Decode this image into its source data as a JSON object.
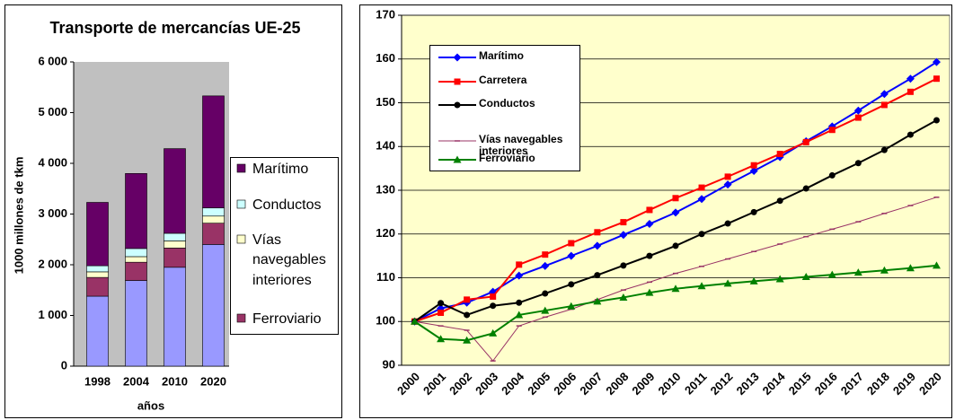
{
  "chart_data": [
    {
      "type": "bar",
      "stacked": true,
      "title": "Transporte de mercancías UE-25",
      "x_label": "años",
      "y_label": "1000 millones de tkm",
      "categories": [
        "1998",
        "2004",
        "2010",
        "2020"
      ],
      "ylim": [
        0,
        6000
      ],
      "yticks": [
        0,
        {
          "value": 1000,
          "label": "1 000"
        },
        {
          "value": 2000,
          "label": "2 000"
        },
        {
          "value": 3000,
          "label": "3 000"
        },
        {
          "value": 4000,
          "label": "4 000"
        },
        {
          "value": 5000,
          "label": "5 000"
        },
        {
          "value": 6000,
          "label": "6 000"
        }
      ],
      "grid": false,
      "legend": "right",
      "plot_background": "#c0c0c0",
      "series": [
        {
          "color": "#9999ff",
          "values": [
            1380,
            1690,
            1950,
            2400
          ]
        },
        {
          "name": "Ferroviario",
          "color": "#993366",
          "values": [
            370,
            360,
            380,
            420
          ]
        },
        {
          "name": "Vías navegables interiores",
          "color": "#ffffcc",
          "values": [
            110,
            110,
            140,
            140
          ]
        },
        {
          "name": "Conductos",
          "color": "#ccffff",
          "values": [
            120,
            160,
            150,
            160
          ]
        },
        {
          "name": "Marítimo",
          "color": "#660066",
          "values": [
            1250,
            1480,
            1670,
            2210
          ]
        }
      ]
    },
    {
      "type": "line",
      "categories": [
        "2000",
        "2001",
        "2002",
        "2003",
        "2004",
        "2005",
        "2006",
        "2007",
        "2008",
        "2009",
        "2010",
        "2011",
        "2012",
        "2013",
        "2014",
        "2015",
        "2016",
        "2017",
        "2018",
        "2019",
        "2020"
      ],
      "ylim": [
        90,
        170
      ],
      "yticks": [
        90,
        100,
        110,
        120,
        130,
        140,
        150,
        160,
        170
      ],
      "grid": true,
      "legend": "upper left",
      "plot_background": "#ffffcc",
      "series": [
        {
          "name": "Marítimo",
          "color": "#0000ff",
          "marker": "diamond",
          "values": [
            100,
            103,
            104.3,
            106.8,
            110.5,
            112.7,
            115,
            117.3,
            119.8,
            122.3,
            124.9,
            128,
            131.3,
            134.4,
            137.6,
            141.2,
            144.6,
            148.2,
            152,
            155.5,
            159.3
          ]
        },
        {
          "name": "Carretera",
          "color": "#ff0000",
          "marker": "square",
          "values": [
            100,
            102,
            105,
            105.7,
            113,
            115.3,
            117.9,
            120.4,
            122.7,
            125.5,
            128.2,
            130.6,
            133.1,
            135.7,
            138.3,
            141,
            143.8,
            146.6,
            149.5,
            152.5,
            155.5
          ]
        },
        {
          "name": "Conductos",
          "color": "#000000",
          "marker": "circle",
          "values": [
            100,
            104.2,
            101.5,
            103.6,
            104.3,
            106.4,
            108.5,
            110.6,
            112.8,
            115,
            117.3,
            120,
            122.4,
            125,
            127.6,
            130.4,
            133.4,
            136.2,
            139.2,
            142.7,
            146
          ]
        },
        {
          "name": "Vías navegables interiores",
          "color": "#993366",
          "marker": "dash",
          "values": [
            100,
            99,
            98,
            91,
            99,
            101,
            102.8,
            105,
            107.2,
            109,
            111,
            112.6,
            114.3,
            116,
            117.7,
            119.4,
            121.1,
            122.8,
            124.7,
            126.5,
            128.4
          ]
        },
        {
          "name": "Ferroviario",
          "color": "#008000",
          "marker": "triangle",
          "values": [
            100,
            96,
            95.7,
            97.3,
            101.5,
            102.5,
            103.5,
            104.6,
            105.5,
            106.6,
            107.5,
            108.1,
            108.7,
            109.2,
            109.7,
            110.2,
            110.7,
            111.2,
            111.7,
            112.2,
            112.8
          ]
        }
      ]
    }
  ]
}
